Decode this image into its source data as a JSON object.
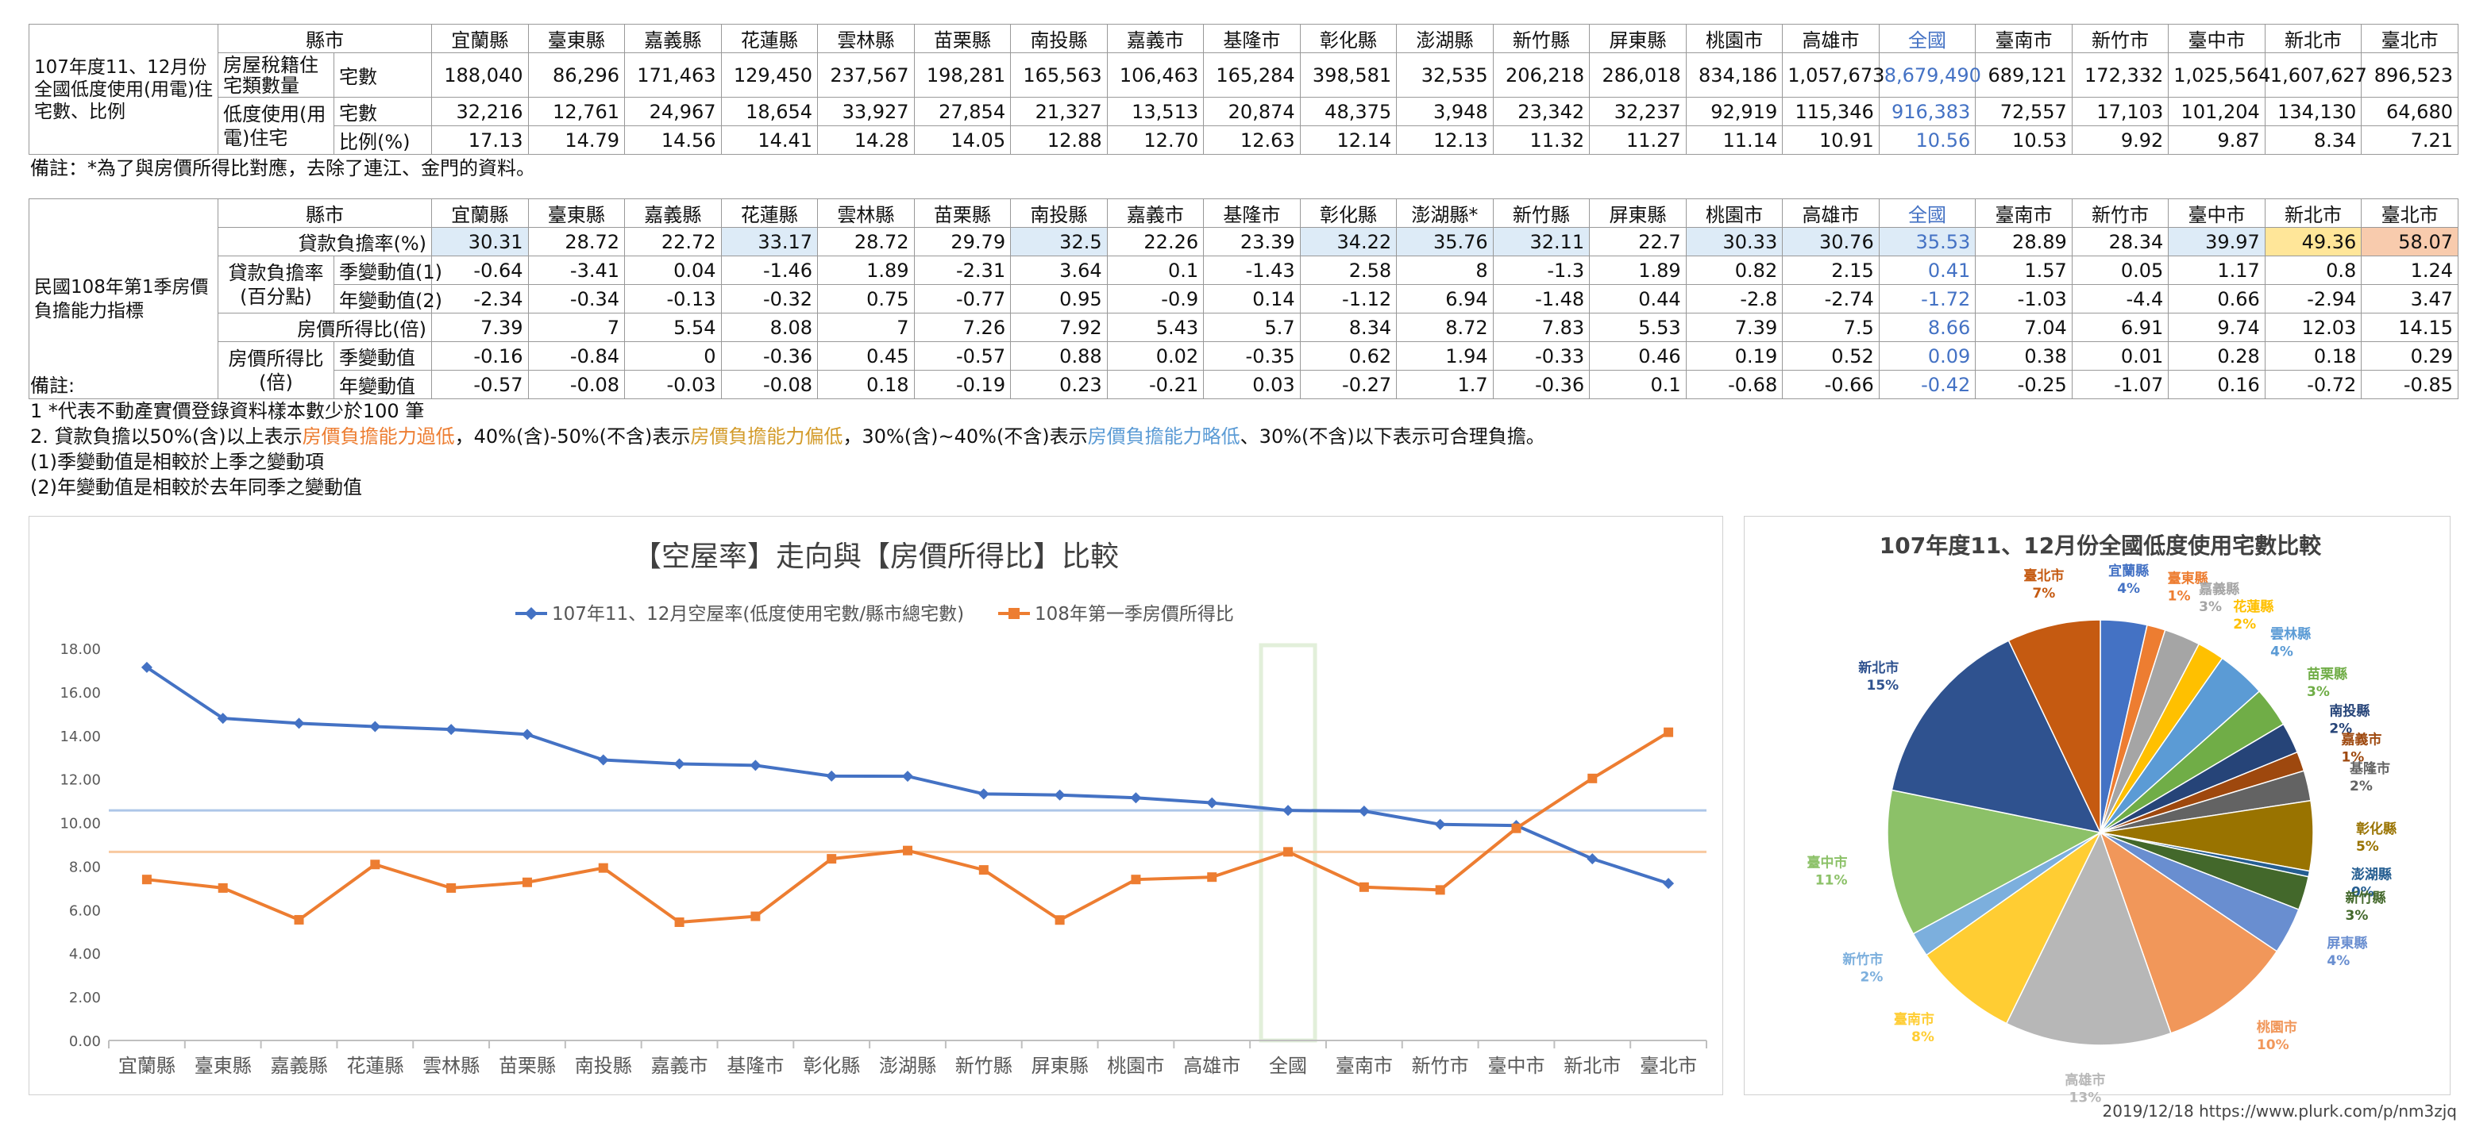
{
  "t1": {
    "side": "107年度11、12月份全國低度使用(用電)住宅數、比例",
    "col_header": "縣市",
    "row1_label": "房屋稅籍住宅類數量",
    "row1_sub": "宅數",
    "row2_label": "低度使用(用電)住宅",
    "row2_sub": "宅數",
    "row3_sub": "比例(%)",
    "cities": [
      "宜蘭縣",
      "臺東縣",
      "嘉義縣",
      "花蓮縣",
      "雲林縣",
      "苗栗縣",
      "南投縣",
      "嘉義市",
      "基隆市",
      "彰化縣",
      "澎湖縣",
      "新竹縣",
      "屏東縣",
      "桃園市",
      "高雄市",
      "全國",
      "臺南市",
      "新竹市",
      "臺中市",
      "新北市",
      "臺北市"
    ],
    "houses": [
      "188,040",
      "86,296",
      "171,463",
      "129,450",
      "237,567",
      "198,281",
      "165,563",
      "106,463",
      "165,284",
      "398,581",
      "32,535",
      "206,218",
      "286,018",
      "834,186",
      "1,057,673",
      "8,679,490",
      "689,121",
      "172,332",
      "1,025,564",
      "1,607,627",
      "896,523"
    ],
    "low_use": [
      "32,216",
      "12,761",
      "24,967",
      "18,654",
      "33,927",
      "27,854",
      "21,327",
      "13,513",
      "20,874",
      "48,375",
      "3,948",
      "23,342",
      "32,237",
      "92,919",
      "115,346",
      "916,383",
      "72,557",
      "17,103",
      "101,204",
      "134,130",
      "64,680"
    ],
    "ratio": [
      "17.13",
      "14.79",
      "14.56",
      "14.41",
      "14.28",
      "14.05",
      "12.88",
      "12.70",
      "12.63",
      "12.14",
      "12.13",
      "11.32",
      "11.27",
      "11.14",
      "10.91",
      "10.56",
      "10.53",
      "9.92",
      "9.87",
      "8.34",
      "7.21"
    ]
  },
  "note1": "備註：*為了與房價所得比對應，去除了連江、金門的資料。",
  "t2": {
    "side": "民國108年第1季房價負擔能力指標",
    "col_header": "縣市",
    "cities": [
      "宜蘭縣",
      "臺東縣",
      "嘉義縣",
      "花蓮縣",
      "雲林縣",
      "苗栗縣",
      "南投縣",
      "嘉義市",
      "基隆市",
      "彰化縣",
      "澎湖縣*",
      "新竹縣",
      "屏東縣",
      "桃園市",
      "高雄市",
      "全國",
      "臺南市",
      "新竹市",
      "臺中市",
      "新北市",
      "臺北市"
    ],
    "r1_label": "貸款負擔率(%)",
    "r1": [
      "30.31",
      "28.72",
      "22.72",
      "33.17",
      "28.72",
      "29.79",
      "32.5",
      "22.26",
      "23.39",
      "34.22",
      "35.76",
      "32.11",
      "22.7",
      "30.33",
      "30.76",
      "35.53",
      "28.89",
      "28.34",
      "39.97",
      "49.36",
      "58.07"
    ],
    "g2_label": "貸款負擔率(百分點)",
    "r2_sub": "季變動值(1)",
    "r2": [
      "-0.64",
      "-3.41",
      "0.04",
      "-1.46",
      "1.89",
      "-2.31",
      "3.64",
      "0.1",
      "-1.43",
      "2.58",
      "8",
      "-1.3",
      "1.89",
      "0.82",
      "2.15",
      "0.41",
      "1.57",
      "0.05",
      "1.17",
      "0.8",
      "1.24"
    ],
    "r3_sub": "年變動值(2)",
    "r3": [
      "-2.34",
      "-0.34",
      "-0.13",
      "-0.32",
      "0.75",
      "-0.77",
      "0.95",
      "-0.9",
      "0.14",
      "-1.12",
      "6.94",
      "-1.48",
      "0.44",
      "-2.8",
      "-2.74",
      "-1.72",
      "-1.03",
      "-4.4",
      "0.66",
      "-2.94",
      "3.47"
    ],
    "r4_label": "房價所得比(倍)",
    "r4": [
      "7.39",
      "7",
      "5.54",
      "8.08",
      "7",
      "7.26",
      "7.92",
      "5.43",
      "5.7",
      "8.34",
      "8.72",
      "7.83",
      "5.53",
      "7.39",
      "7.5",
      "8.66",
      "7.04",
      "6.91",
      "9.74",
      "12.03",
      "14.15"
    ],
    "g5_label": "房價所得比(倍)",
    "r5_sub": "季變動值",
    "r5": [
      "-0.16",
      "-0.84",
      "0",
      "-0.36",
      "0.45",
      "-0.57",
      "0.88",
      "0.02",
      "-0.35",
      "0.62",
      "1.94",
      "-0.33",
      "0.46",
      "0.19",
      "0.52",
      "0.09",
      "0.38",
      "0.01",
      "0.28",
      "0.18",
      "0.29"
    ],
    "r6_sub": "年變動值",
    "r6": [
      "-0.57",
      "-0.08",
      "-0.03",
      "-0.08",
      "0.18",
      "-0.19",
      "0.23",
      "-0.21",
      "0.03",
      "-0.27",
      "1.7",
      "-0.36",
      "0.1",
      "-0.68",
      "-0.66",
      "-0.42",
      "-0.25",
      "-1.07",
      "0.16",
      "-0.72",
      "-0.85"
    ]
  },
  "notes2": {
    "title": "備註:",
    "l1": "1 *代表不動產實價登錄資料樣本數少於100 筆",
    "l2a": "2. 貸款負擔以50%(含)以上表示",
    "l2b": "房價負擔能力過低",
    "l2c": "，40%(含)-50%(不含)表示",
    "l2d": "房價負擔能力偏低",
    "l2e": "，30%(含)~40%(不含)表示",
    "l2f": "房價負擔能力略低",
    "l2g": "、30%(不含)以下表示可合理負擔。",
    "l3": "(1)季變動值是相較於上季之變動項",
    "l4": "(2)年變動值是相較於去年同季之變動值"
  },
  "colors": {
    "blue": "#4472c4",
    "orange": "#ed7d31",
    "lightblue": "#adc6e8",
    "lightorange": "#f8c9a0",
    "highlight": "#e2efda"
  },
  "chart_data": [
    {
      "type": "line",
      "title": "【空屋率】走向與【房價所得比】比較",
      "x": [
        "宜蘭縣",
        "臺東縣",
        "嘉義縣",
        "花蓮縣",
        "雲林縣",
        "苗栗縣",
        "南投縣",
        "嘉義市",
        "基隆市",
        "彰化縣",
        "澎湖縣",
        "新竹縣",
        "屏東縣",
        "桃園市",
        "高雄市",
        "全國",
        "臺南市",
        "新竹市",
        "臺中市",
        "新北市",
        "臺北市"
      ],
      "series": [
        {
          "name": "107年11、12月空屋率(低度使用宅數/縣市總宅數)",
          "color": "#4472c4",
          "values": [
            17.13,
            14.79,
            14.56,
            14.41,
            14.28,
            14.05,
            12.88,
            12.7,
            12.63,
            12.14,
            12.13,
            11.32,
            11.27,
            11.14,
            10.91,
            10.56,
            10.53,
            9.92,
            9.87,
            8.34,
            7.21
          ]
        },
        {
          "name": "108年第一季房價所得比",
          "color": "#ed7d31",
          "values": [
            7.39,
            7,
            5.54,
            8.08,
            7,
            7.26,
            7.92,
            5.43,
            5.7,
            8.34,
            8.72,
            7.83,
            5.53,
            7.39,
            7.5,
            8.66,
            7.04,
            6.91,
            9.74,
            12.03,
            14.15
          ]
        }
      ],
      "yticks": [
        "0.00",
        "2.00",
        "4.00",
        "6.00",
        "8.00",
        "10.00",
        "12.00",
        "14.00",
        "16.00",
        "18.00"
      ],
      "ylim": [
        0,
        18
      ],
      "reference_lines": [
        10.56,
        8.66
      ],
      "highlight_category": "全國",
      "legend": "top"
    },
    {
      "type": "pie",
      "title": "107年度11、12月份全國低度使用宅數比較",
      "slices": [
        {
          "label": "宜蘭縣",
          "pct": "4%",
          "value": 32216,
          "color": "#4472c4"
        },
        {
          "label": "臺東縣",
          "pct": "1%",
          "value": 12761,
          "color": "#ed7d31"
        },
        {
          "label": "嘉義縣",
          "pct": "3%",
          "value": 24967,
          "color": "#a5a5a5"
        },
        {
          "label": "花蓮縣",
          "pct": "2%",
          "value": 18654,
          "color": "#ffc000"
        },
        {
          "label": "雲林縣",
          "pct": "4%",
          "value": 33927,
          "color": "#5b9bd5"
        },
        {
          "label": "苗栗縣",
          "pct": "3%",
          "value": 27854,
          "color": "#70ad47"
        },
        {
          "label": "南投縣",
          "pct": "2%",
          "value": 21327,
          "color": "#264478"
        },
        {
          "label": "嘉義市",
          "pct": "1%",
          "value": 13513,
          "color": "#9e480e"
        },
        {
          "label": "基隆市",
          "pct": "2%",
          "value": 20874,
          "color": "#636363"
        },
        {
          "label": "彰化縣",
          "pct": "5%",
          "value": 48375,
          "color": "#997300"
        },
        {
          "label": "澎湖縣",
          "pct": "0%",
          "value": 3948,
          "color": "#255e91"
        },
        {
          "label": "新竹縣",
          "pct": "3%",
          "value": 23342,
          "color": "#43682b"
        },
        {
          "label": "屏東縣",
          "pct": "4%",
          "value": 32237,
          "color": "#698ed0"
        },
        {
          "label": "桃園市",
          "pct": "10%",
          "value": 92919,
          "color": "#f1975a"
        },
        {
          "label": "高雄市",
          "pct": "13%",
          "value": 115346,
          "color": "#b7b7b7"
        },
        {
          "label": "臺南市",
          "pct": "8%",
          "value": 72557,
          "color": "#ffcd33"
        },
        {
          "label": "新竹市",
          "pct": "2%",
          "value": 17103,
          "color": "#7cafdd"
        },
        {
          "label": "臺中市",
          "pct": "11%",
          "value": 101204,
          "color": "#8cc168"
        },
        {
          "label": "新北市",
          "pct": "15%",
          "value": 134130,
          "color": "#2f528f"
        },
        {
          "label": "臺北市",
          "pct": "7%",
          "value": 64680,
          "color": "#c55a11"
        }
      ]
    }
  ],
  "footer": "2019/12/18 https://www.plurk.com/p/nm3zjq"
}
